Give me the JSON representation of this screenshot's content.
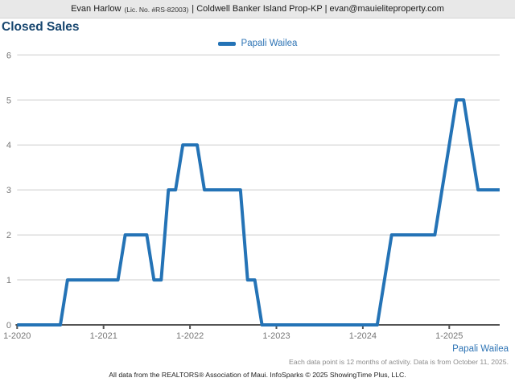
{
  "header": {
    "agent": "Evan Harlow",
    "license": "(Lic. No. #RS-82003)",
    "rest": "| Coldwell Banker Island Prop-KP | evan@mauieliteproperty.com"
  },
  "title": "Closed Sales",
  "colors": {
    "line": "#2473B6",
    "title": "#17466F",
    "brand_blue": "#2E74B5",
    "gridline": "#CCCCCC",
    "axis": "#555555"
  },
  "footer": {
    "series_label": "Papali Wailea",
    "note": "Each data point is 12 months of activity. Data is from October 11, 2025.",
    "attribution": "All data from the REALTORS® Association of Maui. InfoSparks © 2025 ShowingTime Plus, LLC."
  },
  "chart_data": {
    "type": "line",
    "title": "Closed Sales",
    "xlabel": "",
    "ylabel": "",
    "ylim": [
      0,
      6
    ],
    "grid": "horizontal",
    "legend_position": "top-center",
    "y_ticks": [
      0,
      1,
      2,
      3,
      4,
      5,
      6
    ],
    "x_tick_labels": [
      "1-2020",
      "1-2021",
      "1-2022",
      "1-2023",
      "1-2024",
      "1-2025"
    ],
    "months_per_tick": 12,
    "series": [
      {
        "name": "Papali Wailea",
        "color": "#2473B6",
        "months": [
          "1-2020",
          "2-2020",
          "3-2020",
          "4-2020",
          "5-2020",
          "6-2020",
          "7-2020",
          "8-2020",
          "9-2020",
          "10-2020",
          "11-2020",
          "12-2020",
          "1-2021",
          "2-2021",
          "3-2021",
          "4-2021",
          "5-2021",
          "6-2021",
          "7-2021",
          "8-2021",
          "9-2021",
          "10-2021",
          "11-2021",
          "12-2021",
          "1-2022",
          "2-2022",
          "3-2022",
          "4-2022",
          "5-2022",
          "6-2022",
          "7-2022",
          "8-2022",
          "9-2022",
          "10-2022",
          "11-2022",
          "12-2022",
          "1-2023",
          "2-2023",
          "3-2023",
          "4-2023",
          "5-2023",
          "6-2023",
          "7-2023",
          "8-2023",
          "9-2023",
          "10-2023",
          "11-2023",
          "12-2023",
          "1-2024",
          "2-2024",
          "3-2024",
          "4-2024",
          "5-2024",
          "6-2024",
          "7-2024",
          "8-2024",
          "9-2024",
          "10-2024",
          "11-2024",
          "12-2024",
          "1-2025",
          "2-2025",
          "3-2025",
          "4-2025",
          "5-2025",
          "6-2025",
          "7-2025",
          "8-2025"
        ],
        "values": [
          0,
          0,
          0,
          0,
          0,
          0,
          0,
          1,
          1,
          1,
          1,
          1,
          1,
          1,
          1,
          2,
          2,
          2,
          2,
          1,
          1,
          3,
          3,
          4,
          4,
          4,
          3,
          3,
          3,
          3,
          3,
          3,
          1,
          1,
          0,
          0,
          0,
          0,
          0,
          0,
          0,
          0,
          0,
          0,
          0,
          0,
          0,
          0,
          0,
          0,
          0,
          1,
          2,
          2,
          2,
          2,
          2,
          2,
          2,
          3,
          4,
          5,
          5,
          4,
          3,
          3,
          3,
          3
        ]
      }
    ]
  }
}
